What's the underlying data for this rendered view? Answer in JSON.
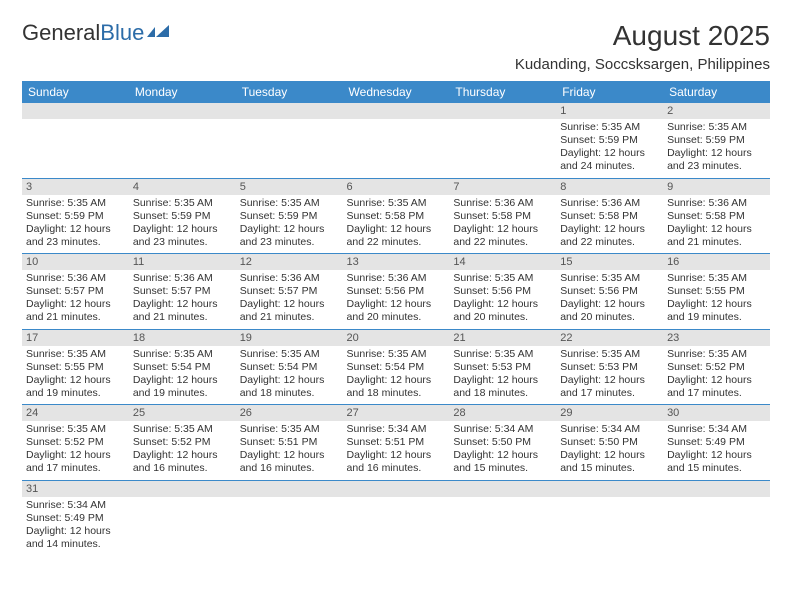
{
  "logo": {
    "text1": "General",
    "text2": "Blue"
  },
  "title": "August 2025",
  "location": "Kudanding, Soccsksargen, Philippines",
  "colors": {
    "header_bg": "#3b89c9",
    "header_text": "#ffffff",
    "daynum_bg": "#e4e4e4",
    "border": "#3b89c9",
    "text": "#333333",
    "logo_accent": "#2c6ca8"
  },
  "days_of_week": [
    "Sunday",
    "Monday",
    "Tuesday",
    "Wednesday",
    "Thursday",
    "Friday",
    "Saturday"
  ],
  "weeks": [
    [
      {
        "n": "",
        "sr": "",
        "ss": "",
        "dl": ""
      },
      {
        "n": "",
        "sr": "",
        "ss": "",
        "dl": ""
      },
      {
        "n": "",
        "sr": "",
        "ss": "",
        "dl": ""
      },
      {
        "n": "",
        "sr": "",
        "ss": "",
        "dl": ""
      },
      {
        "n": "",
        "sr": "",
        "ss": "",
        "dl": ""
      },
      {
        "n": "1",
        "sr": "Sunrise: 5:35 AM",
        "ss": "Sunset: 5:59 PM",
        "dl": "Daylight: 12 hours and 24 minutes."
      },
      {
        "n": "2",
        "sr": "Sunrise: 5:35 AM",
        "ss": "Sunset: 5:59 PM",
        "dl": "Daylight: 12 hours and 23 minutes."
      }
    ],
    [
      {
        "n": "3",
        "sr": "Sunrise: 5:35 AM",
        "ss": "Sunset: 5:59 PM",
        "dl": "Daylight: 12 hours and 23 minutes."
      },
      {
        "n": "4",
        "sr": "Sunrise: 5:35 AM",
        "ss": "Sunset: 5:59 PM",
        "dl": "Daylight: 12 hours and 23 minutes."
      },
      {
        "n": "5",
        "sr": "Sunrise: 5:35 AM",
        "ss": "Sunset: 5:59 PM",
        "dl": "Daylight: 12 hours and 23 minutes."
      },
      {
        "n": "6",
        "sr": "Sunrise: 5:35 AM",
        "ss": "Sunset: 5:58 PM",
        "dl": "Daylight: 12 hours and 22 minutes."
      },
      {
        "n": "7",
        "sr": "Sunrise: 5:36 AM",
        "ss": "Sunset: 5:58 PM",
        "dl": "Daylight: 12 hours and 22 minutes."
      },
      {
        "n": "8",
        "sr": "Sunrise: 5:36 AM",
        "ss": "Sunset: 5:58 PM",
        "dl": "Daylight: 12 hours and 22 minutes."
      },
      {
        "n": "9",
        "sr": "Sunrise: 5:36 AM",
        "ss": "Sunset: 5:58 PM",
        "dl": "Daylight: 12 hours and 21 minutes."
      }
    ],
    [
      {
        "n": "10",
        "sr": "Sunrise: 5:36 AM",
        "ss": "Sunset: 5:57 PM",
        "dl": "Daylight: 12 hours and 21 minutes."
      },
      {
        "n": "11",
        "sr": "Sunrise: 5:36 AM",
        "ss": "Sunset: 5:57 PM",
        "dl": "Daylight: 12 hours and 21 minutes."
      },
      {
        "n": "12",
        "sr": "Sunrise: 5:36 AM",
        "ss": "Sunset: 5:57 PM",
        "dl": "Daylight: 12 hours and 21 minutes."
      },
      {
        "n": "13",
        "sr": "Sunrise: 5:36 AM",
        "ss": "Sunset: 5:56 PM",
        "dl": "Daylight: 12 hours and 20 minutes."
      },
      {
        "n": "14",
        "sr": "Sunrise: 5:35 AM",
        "ss": "Sunset: 5:56 PM",
        "dl": "Daylight: 12 hours and 20 minutes."
      },
      {
        "n": "15",
        "sr": "Sunrise: 5:35 AM",
        "ss": "Sunset: 5:56 PM",
        "dl": "Daylight: 12 hours and 20 minutes."
      },
      {
        "n": "16",
        "sr": "Sunrise: 5:35 AM",
        "ss": "Sunset: 5:55 PM",
        "dl": "Daylight: 12 hours and 19 minutes."
      }
    ],
    [
      {
        "n": "17",
        "sr": "Sunrise: 5:35 AM",
        "ss": "Sunset: 5:55 PM",
        "dl": "Daylight: 12 hours and 19 minutes."
      },
      {
        "n": "18",
        "sr": "Sunrise: 5:35 AM",
        "ss": "Sunset: 5:54 PM",
        "dl": "Daylight: 12 hours and 19 minutes."
      },
      {
        "n": "19",
        "sr": "Sunrise: 5:35 AM",
        "ss": "Sunset: 5:54 PM",
        "dl": "Daylight: 12 hours and 18 minutes."
      },
      {
        "n": "20",
        "sr": "Sunrise: 5:35 AM",
        "ss": "Sunset: 5:54 PM",
        "dl": "Daylight: 12 hours and 18 minutes."
      },
      {
        "n": "21",
        "sr": "Sunrise: 5:35 AM",
        "ss": "Sunset: 5:53 PM",
        "dl": "Daylight: 12 hours and 18 minutes."
      },
      {
        "n": "22",
        "sr": "Sunrise: 5:35 AM",
        "ss": "Sunset: 5:53 PM",
        "dl": "Daylight: 12 hours and 17 minutes."
      },
      {
        "n": "23",
        "sr": "Sunrise: 5:35 AM",
        "ss": "Sunset: 5:52 PM",
        "dl": "Daylight: 12 hours and 17 minutes."
      }
    ],
    [
      {
        "n": "24",
        "sr": "Sunrise: 5:35 AM",
        "ss": "Sunset: 5:52 PM",
        "dl": "Daylight: 12 hours and 17 minutes."
      },
      {
        "n": "25",
        "sr": "Sunrise: 5:35 AM",
        "ss": "Sunset: 5:52 PM",
        "dl": "Daylight: 12 hours and 16 minutes."
      },
      {
        "n": "26",
        "sr": "Sunrise: 5:35 AM",
        "ss": "Sunset: 5:51 PM",
        "dl": "Daylight: 12 hours and 16 minutes."
      },
      {
        "n": "27",
        "sr": "Sunrise: 5:34 AM",
        "ss": "Sunset: 5:51 PM",
        "dl": "Daylight: 12 hours and 16 minutes."
      },
      {
        "n": "28",
        "sr": "Sunrise: 5:34 AM",
        "ss": "Sunset: 5:50 PM",
        "dl": "Daylight: 12 hours and 15 minutes."
      },
      {
        "n": "29",
        "sr": "Sunrise: 5:34 AM",
        "ss": "Sunset: 5:50 PM",
        "dl": "Daylight: 12 hours and 15 minutes."
      },
      {
        "n": "30",
        "sr": "Sunrise: 5:34 AM",
        "ss": "Sunset: 5:49 PM",
        "dl": "Daylight: 12 hours and 15 minutes."
      }
    ],
    [
      {
        "n": "31",
        "sr": "Sunrise: 5:34 AM",
        "ss": "Sunset: 5:49 PM",
        "dl": "Daylight: 12 hours and 14 minutes."
      },
      {
        "n": "",
        "sr": "",
        "ss": "",
        "dl": ""
      },
      {
        "n": "",
        "sr": "",
        "ss": "",
        "dl": ""
      },
      {
        "n": "",
        "sr": "",
        "ss": "",
        "dl": ""
      },
      {
        "n": "",
        "sr": "",
        "ss": "",
        "dl": ""
      },
      {
        "n": "",
        "sr": "",
        "ss": "",
        "dl": ""
      },
      {
        "n": "",
        "sr": "",
        "ss": "",
        "dl": ""
      }
    ]
  ]
}
